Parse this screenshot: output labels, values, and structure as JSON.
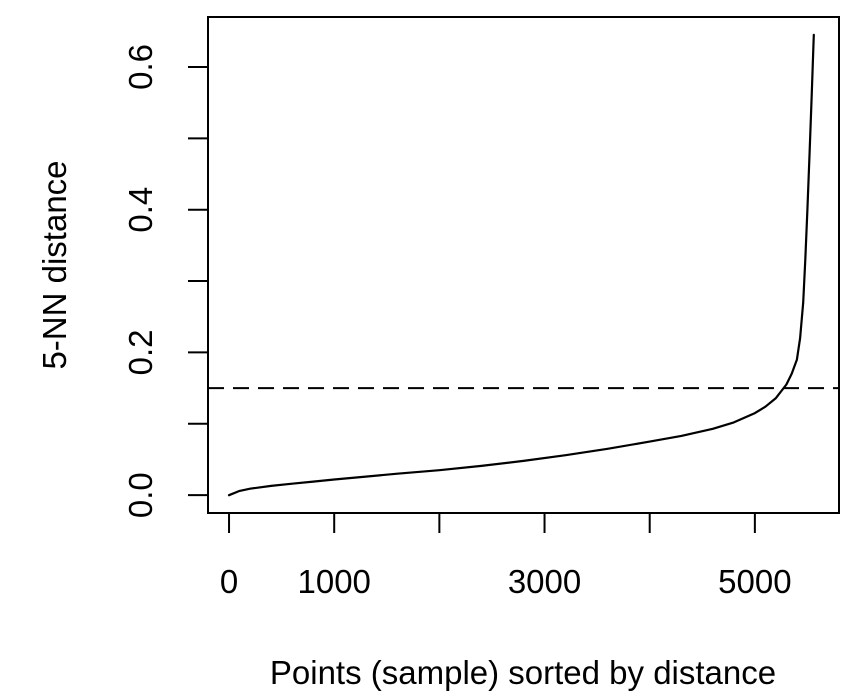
{
  "chart_data": {
    "type": "line",
    "title": "",
    "xlabel": "Points (sample) sorted by distance",
    "ylabel": "5-NN distance",
    "xlim": [
      -200,
      5800
    ],
    "ylim": [
      -0.025,
      0.67
    ],
    "x_ticks": [
      0,
      1000,
      2000,
      3000,
      4000,
      5000
    ],
    "x_tick_labels": [
      "0",
      "1000",
      "",
      "3000",
      "",
      "5000"
    ],
    "y_ticks": [
      0.0,
      0.1,
      0.2,
      0.3,
      0.4,
      0.5,
      0.6
    ],
    "y_tick_labels": [
      "0.0",
      "",
      "0.2",
      "",
      "0.4",
      "",
      "0.6"
    ],
    "grid": false,
    "legend": "none",
    "line_color": "#000000",
    "series": [
      {
        "x": [
          0,
          100,
          200,
          400,
          600,
          800,
          1000,
          1300,
          1600,
          2000,
          2400,
          2800,
          3200,
          3600,
          4000,
          4300,
          4600,
          4800,
          5000,
          5100,
          5200,
          5300,
          5350,
          5400,
          5430,
          5460,
          5480,
          5500,
          5520,
          5540,
          5560
        ],
        "y": [
          0.0,
          0.006,
          0.009,
          0.013,
          0.016,
          0.019,
          0.022,
          0.026,
          0.03,
          0.035,
          0.041,
          0.048,
          0.056,
          0.065,
          0.075,
          0.083,
          0.093,
          0.102,
          0.115,
          0.124,
          0.136,
          0.155,
          0.17,
          0.19,
          0.22,
          0.27,
          0.33,
          0.4,
          0.48,
          0.56,
          0.645
        ]
      }
    ],
    "reference_lines": [
      {
        "orientation": "horizontal",
        "y": 0.15,
        "style": "dashed"
      }
    ]
  }
}
